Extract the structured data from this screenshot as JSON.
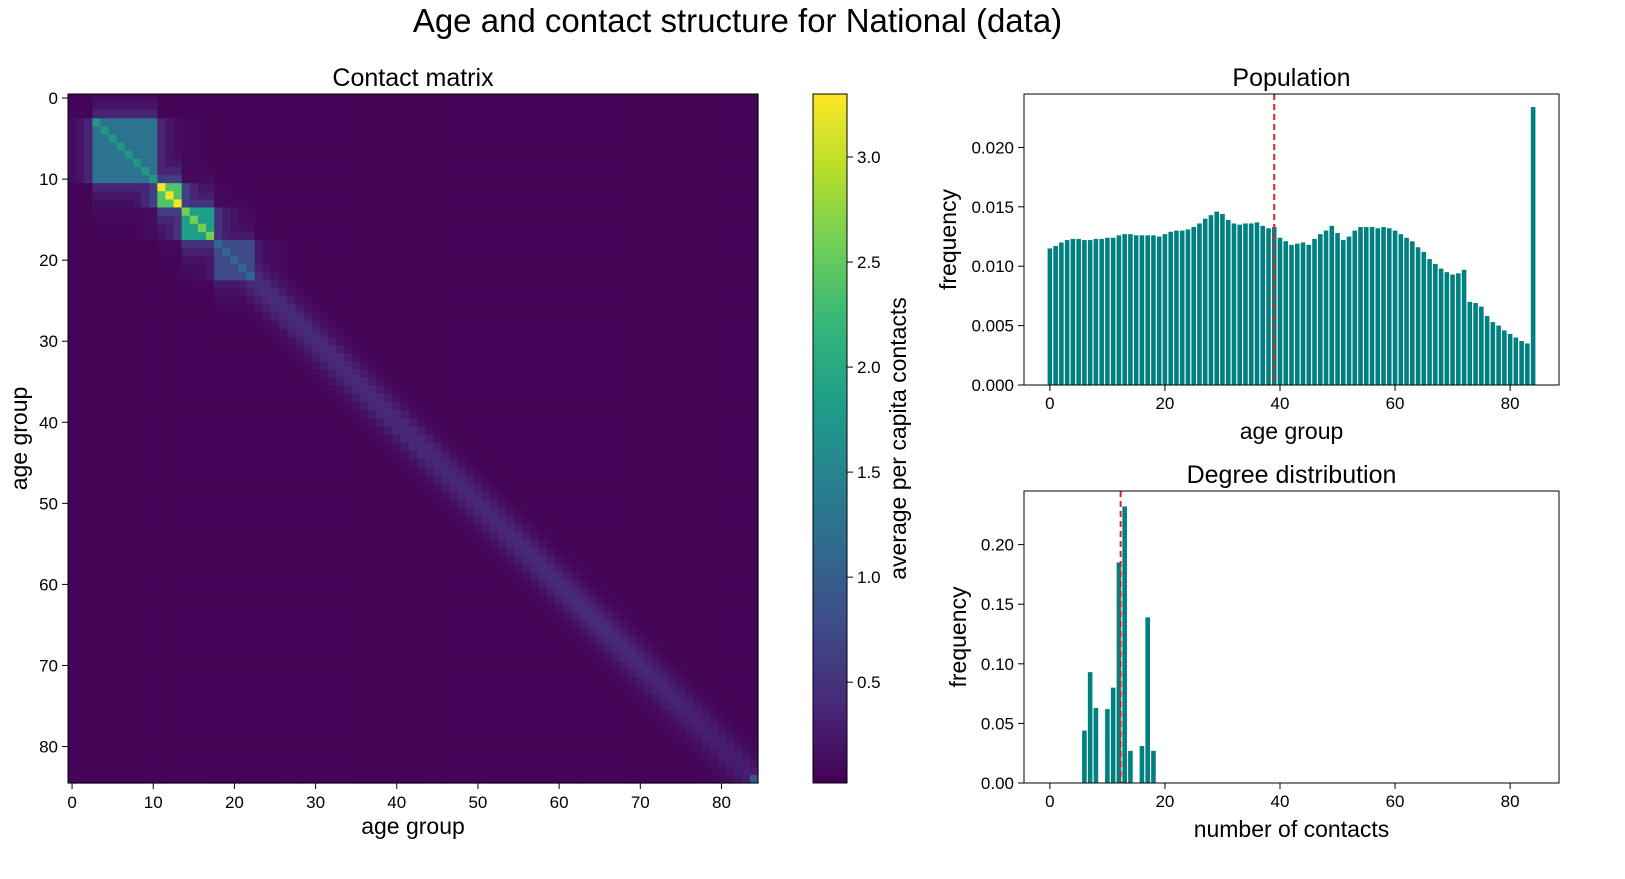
{
  "figure": {
    "title": "Age and contact structure for National (data)"
  },
  "colors": {
    "bar": "#008080",
    "marker": "#d62728",
    "axis": "#000000"
  },
  "chart_data": [
    {
      "type": "heatmap",
      "title": "Contact matrix",
      "xlabel": "age group",
      "ylabel": "age group",
      "colorbar_label": "average per capita contacts",
      "colormap": "viridis",
      "n": 85,
      "xlim": [
        -0.5,
        84.5
      ],
      "ylim": [
        84.5,
        -0.5
      ],
      "xticks": [
        0,
        10,
        20,
        30,
        40,
        50,
        60,
        70,
        80
      ],
      "yticks": [
        0,
        10,
        20,
        30,
        40,
        50,
        60,
        70,
        80
      ],
      "colorbar_range": [
        0.02,
        3.3
      ],
      "colorbar_ticks": [
        0.5,
        1.0,
        1.5,
        2.0,
        2.5,
        3.0
      ],
      "colorbar_ticklabels": [
        "0.5",
        "1.0",
        "1.5",
        "2.0",
        "2.5",
        "3.0"
      ],
      "cells_description_structure": {
        "background": 0.05,
        "school_blocks": [
          {
            "from": 3,
            "to": 11,
            "value": 1.25,
            "diag": 1.75
          },
          {
            "from": 11,
            "to": 14,
            "value": 2.4,
            "diag": 3.25
          },
          {
            "from": 14,
            "to": 18,
            "value": 1.85,
            "diag": 2.6
          },
          {
            "from": 18,
            "to": 23,
            "value": 0.75,
            "diag": 1.1
          }
        ],
        "band": [
          {
            "age": 20,
            "value": 0.45
          },
          {
            "age": 30,
            "value": 0.42
          },
          {
            "age": 50,
            "value": 0.38
          },
          {
            "age": 65,
            "value": 0.42
          },
          {
            "age": 80,
            "value": 0.3
          }
        ],
        "corner": {
          "cell": [
            84,
            84
          ],
          "value": 0.9
        }
      }
    },
    {
      "type": "bar",
      "title": "Population",
      "xlabel": "age group",
      "ylabel": "frequency",
      "xlim": [
        -4.5,
        88.5
      ],
      "ylim": [
        0,
        0.0245
      ],
      "xticks": [
        0,
        20,
        40,
        60,
        80
      ],
      "yticks": [
        0,
        0.005,
        0.01,
        0.015,
        0.02
      ],
      "yticklabels": [
        "0.000",
        "0.005",
        "0.010",
        "0.015",
        "0.020"
      ],
      "marker_x": 39,
      "x_start": 0,
      "values": [
        0.0115,
        0.0117,
        0.012,
        0.0122,
        0.0123,
        0.0123,
        0.0122,
        0.0122,
        0.0123,
        0.0123,
        0.0124,
        0.0124,
        0.0126,
        0.0127,
        0.0127,
        0.0126,
        0.0126,
        0.0126,
        0.0126,
        0.0125,
        0.0127,
        0.0129,
        0.013,
        0.013,
        0.0131,
        0.0133,
        0.0136,
        0.014,
        0.0143,
        0.0146,
        0.0144,
        0.0139,
        0.0136,
        0.0135,
        0.0136,
        0.0136,
        0.0137,
        0.0134,
        0.0132,
        0.0133,
        0.0124,
        0.0121,
        0.0118,
        0.0119,
        0.012,
        0.0118,
        0.0123,
        0.0127,
        0.013,
        0.0134,
        0.0128,
        0.0122,
        0.0125,
        0.013,
        0.0133,
        0.0133,
        0.0133,
        0.0132,
        0.0133,
        0.0132,
        0.013,
        0.0127,
        0.0124,
        0.0121,
        0.0116,
        0.0112,
        0.0106,
        0.0102,
        0.0098,
        0.0095,
        0.0093,
        0.0094,
        0.0097,
        0.007,
        0.0069,
        0.0066,
        0.0058,
        0.0053,
        0.005,
        0.0046,
        0.0043,
        0.004,
        0.0037,
        0.0035,
        0.0234
      ]
    },
    {
      "type": "bar",
      "title": "Degree distribution",
      "xlabel": "number of contacts",
      "ylabel": "frequency",
      "xlim": [
        -4.5,
        88.5
      ],
      "ylim": [
        0,
        0.245
      ],
      "xticks": [
        0,
        20,
        40,
        60,
        80
      ],
      "yticks": [
        0,
        0.05,
        0.1,
        0.15,
        0.2
      ],
      "yticklabels": [
        "0.00",
        "0.05",
        "0.10",
        "0.15",
        "0.20"
      ],
      "marker_x": 12.3,
      "x": [
        6,
        7,
        8,
        10,
        11,
        12,
        13,
        14,
        16,
        17,
        18
      ],
      "values": [
        0.044,
        0.093,
        0.063,
        0.062,
        0.08,
        0.185,
        0.232,
        0.027,
        0.031,
        0.139,
        0.027
      ]
    }
  ]
}
